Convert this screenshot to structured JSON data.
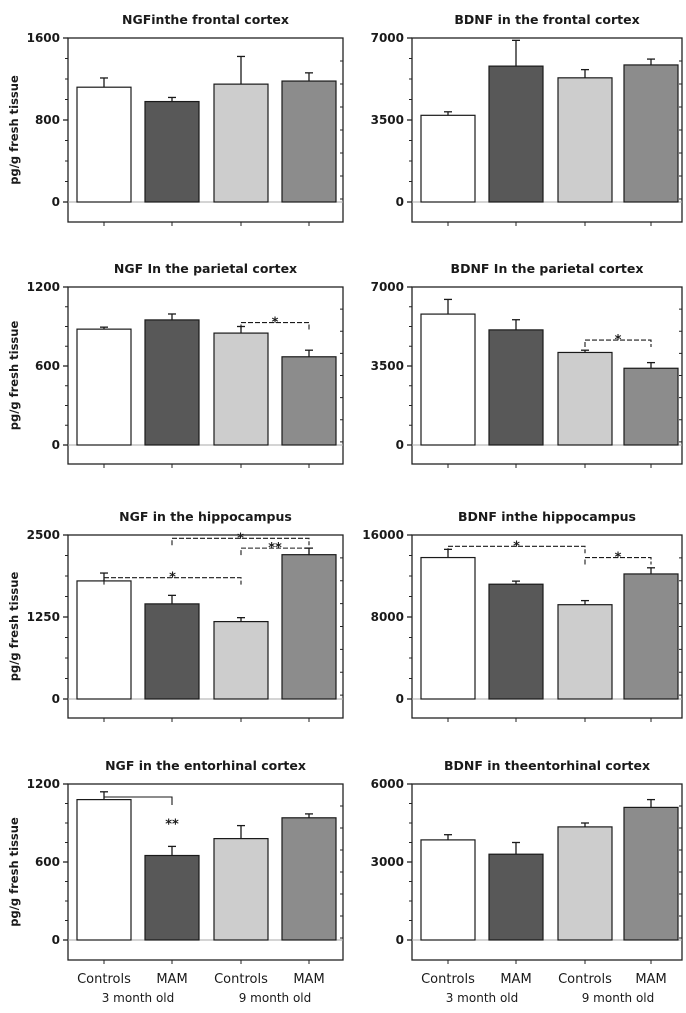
{
  "footer": {
    "categories": [
      "Controls",
      "MAM",
      "Controls",
      "MAM"
    ],
    "groups": [
      "3 month old",
      "9 month old"
    ]
  },
  "colors": {
    "bars": [
      "#ffffff",
      "#585858",
      "#cdcdcd",
      "#8c8c8c"
    ],
    "axis": "#222222"
  },
  "chart_data": [
    {
      "type": "bar",
      "title": "NGFinthe frontal cortex",
      "ylabel": "pg/g fresh tissue",
      "categories": [
        "Controls",
        "MAM",
        "Controls",
        "MAM"
      ],
      "values": [
        1120,
        980,
        1150,
        1180
      ],
      "errors": [
        90,
        40,
        270,
        80
      ],
      "ylim": [
        0,
        1600
      ],
      "yticks": [
        0,
        800,
        1600
      ],
      "yticklabels": [
        "0",
        "800",
        "1600"
      ],
      "significance": []
    },
    {
      "type": "bar",
      "title": "BDNF in the frontal cortex",
      "ylabel": "",
      "categories": [
        "Controls",
        "MAM",
        "Controls",
        "MAM"
      ],
      "values": [
        3700,
        5800,
        5300,
        5850
      ],
      "errors": [
        150,
        1100,
        350,
        250
      ],
      "ylim": [
        0,
        7000
      ],
      "yticks": [
        0,
        3500,
        7000
      ],
      "yticklabels": [
        "0",
        "3500",
        "7000"
      ],
      "significance": []
    },
    {
      "type": "bar",
      "title": "NGF In the parietal cortex",
      "ylabel": "pg/g fresh tissue",
      "categories": [
        "Controls",
        "MAM",
        "Controls",
        "MAM"
      ],
      "values": [
        880,
        950,
        850,
        670
      ],
      "errors": [
        15,
        45,
        50,
        50
      ],
      "ylim": [
        0,
        1200
      ],
      "yticks": [
        0,
        600,
        1200
      ],
      "yticklabels": [
        "0",
        "600",
        "1200"
      ],
      "significance": [
        {
          "from": 2,
          "to": 3,
          "label": "*",
          "y": 930
        }
      ]
    },
    {
      "type": "bar",
      "title": "BDNF In the parietal cortex",
      "ylabel": "",
      "categories": [
        "Controls",
        "MAM",
        "Controls",
        "MAM"
      ],
      "values": [
        5800,
        5100,
        4100,
        3400
      ],
      "errors": [
        650,
        450,
        100,
        250
      ],
      "ylim": [
        0,
        7000
      ],
      "yticks": [
        0,
        3500,
        7000
      ],
      "yticklabels": [
        "0",
        "3500",
        "7000"
      ],
      "significance": [
        {
          "from": 2,
          "to": 3,
          "label": "*",
          "y": 4650
        }
      ]
    },
    {
      "type": "bar",
      "title": "NGF in the hippocampus",
      "ylabel": "pg/g fresh tissue",
      "categories": [
        "Controls",
        "MAM",
        "Controls",
        "MAM"
      ],
      "values": [
        1800,
        1450,
        1180,
        2200
      ],
      "errors": [
        120,
        130,
        60,
        100
      ],
      "ylim": [
        0,
        2500
      ],
      "yticks": [
        0,
        1250,
        2500
      ],
      "yticklabels": [
        "0",
        "1250",
        "2500"
      ],
      "significance": [
        {
          "from": 0,
          "to": 2,
          "label": "*",
          "y": 1850
        },
        {
          "from": 1,
          "to": 3,
          "label": "*",
          "y": 2450
        },
        {
          "from": 2,
          "to": 3,
          "label": "**",
          "y": 2300
        }
      ]
    },
    {
      "type": "bar",
      "title": "BDNF inthe hippocampus",
      "ylabel": "",
      "categories": [
        "Controls",
        "MAM",
        "Controls",
        "MAM"
      ],
      "values": [
        13800,
        11200,
        9200,
        12200
      ],
      "errors": [
        800,
        300,
        400,
        600
      ],
      "ylim": [
        0,
        16000
      ],
      "yticks": [
        0,
        8000,
        16000
      ],
      "yticklabels": [
        "0",
        "8000",
        "16000"
      ],
      "significance": [
        {
          "from": 0,
          "to": 2,
          "label": "*",
          "y": 14900
        },
        {
          "from": 2,
          "to": 3,
          "label": "*",
          "y": 13800
        }
      ]
    },
    {
      "type": "bar",
      "title": "NGF in the entorhinal cortex",
      "ylabel": "pg/g fresh tissue",
      "categories": [
        "Controls",
        "MAM",
        "Controls",
        "MAM"
      ],
      "values": [
        1080,
        650,
        780,
        940
      ],
      "errors": [
        60,
        70,
        100,
        30
      ],
      "ylim": [
        0,
        1200
      ],
      "yticks": [
        0,
        600,
        1200
      ],
      "yticklabels": [
        "0",
        "600",
        "1200"
      ],
      "significance": [
        {
          "from": 0,
          "to": 1,
          "label": "**",
          "type": "corner",
          "y": 1100
        }
      ]
    },
    {
      "type": "bar",
      "title": "BDNF in theentorhinal cortex",
      "ylabel": "",
      "categories": [
        "Controls",
        "MAM",
        "Controls",
        "MAM"
      ],
      "values": [
        3850,
        3300,
        4350,
        5100
      ],
      "errors": [
        200,
        450,
        150,
        300
      ],
      "ylim": [
        0,
        6000
      ],
      "yticks": [
        0,
        3000,
        6000
      ],
      "yticklabels": [
        "0",
        "3000",
        "6000"
      ],
      "significance": []
    }
  ]
}
